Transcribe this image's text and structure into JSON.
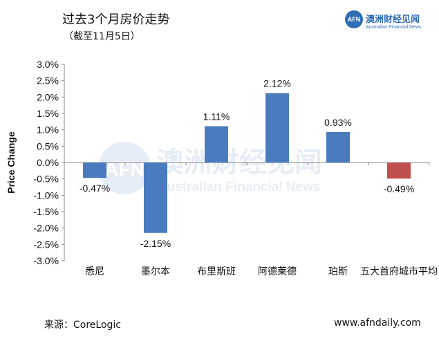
{
  "header": {
    "title": "过去3个月房价走势",
    "subtitle": "（截至11月5日）"
  },
  "logo": {
    "badge": "AFN",
    "name_cn": "澳洲财经见闻",
    "name_en": "Australian Financial News"
  },
  "watermark": {
    "name_cn": "澳洲财经见闻",
    "name_en": "Australian Financial News"
  },
  "footer": {
    "source": "来源：CoreLogic",
    "website": "www.afndaily.com"
  },
  "colors": {
    "bar": "#4a7bbf",
    "highlight": "#c0504d",
    "logo": "#2f6db5"
  },
  "chart_data": {
    "type": "bar",
    "ylabel": "Price Change",
    "ylim": [
      -3.0,
      3.0
    ],
    "ytick_step": 0.5,
    "ytick_labels": [
      "3.0%",
      "2.5%",
      "2.0%",
      "1.5%",
      "1.0%",
      "0.5%",
      "0.0%",
      "-0.5%",
      "-1.0%",
      "-1.5%",
      "-2.0%",
      "-2.5%",
      "-3.0%"
    ],
    "categories": [
      "悉尼",
      "墨尔本",
      "布里斯班",
      "阿德莱德",
      "珀斯",
      "五大首府城市平均"
    ],
    "values": [
      -0.47,
      -2.15,
      1.11,
      2.12,
      0.93,
      -0.49
    ],
    "value_labels": [
      "-0.47%",
      "-2.15%",
      "1.11%",
      "2.12%",
      "0.93%",
      "-0.49%"
    ],
    "highlight_index": 5,
    "grid": false,
    "legend": "none"
  }
}
